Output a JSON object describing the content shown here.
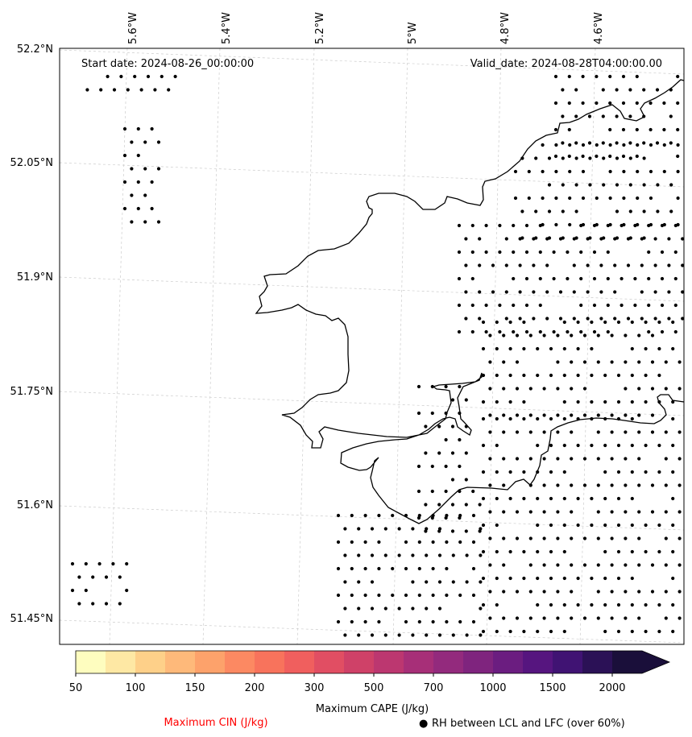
{
  "map": {
    "start_date_text": "Start date: 2024-08-26_00:00:00",
    "valid_date_text": "Valid_date: 2024-08-28T04:00:00.00",
    "lon_labels": [
      "5.6°W",
      "5.4°W",
      "5.2°W",
      "5°W",
      "4.8°W",
      "4.6°W"
    ],
    "lat_labels": [
      "52.2°N",
      "52.05°N",
      "51.9°N",
      "51.75°N",
      "51.6°N",
      "51.45°N"
    ],
    "coastline_color": "#000000",
    "gridline_color": "#cccccc",
    "dot_marker_color": "#000000"
  },
  "colorbar": {
    "tick_labels": [
      "50",
      "100",
      "150",
      "200",
      "300",
      "500",
      "700",
      "1000",
      "1500",
      "2000"
    ],
    "colors": [
      "#fefdbf",
      "#fee8a4",
      "#fed089",
      "#feb97a",
      "#fda26b",
      "#fc8962",
      "#f8735c",
      "#f05f5e",
      "#e14e63",
      "#cf4168",
      "#bc3770",
      "#a72f78",
      "#932a7d",
      "#7f247e",
      "#6b1d80",
      "#56157f",
      "#401373",
      "#2b1156",
      "#1a0f3a"
    ],
    "extend": "max",
    "label": "Maximum CAPE (J/kg)"
  },
  "legend": {
    "cin_label": "Maximum CIN (J/kg)",
    "cin_color": "#ff0000",
    "rh_symbol": "●",
    "rh_label": "RH between LCL and LFC (over 60%)"
  }
}
